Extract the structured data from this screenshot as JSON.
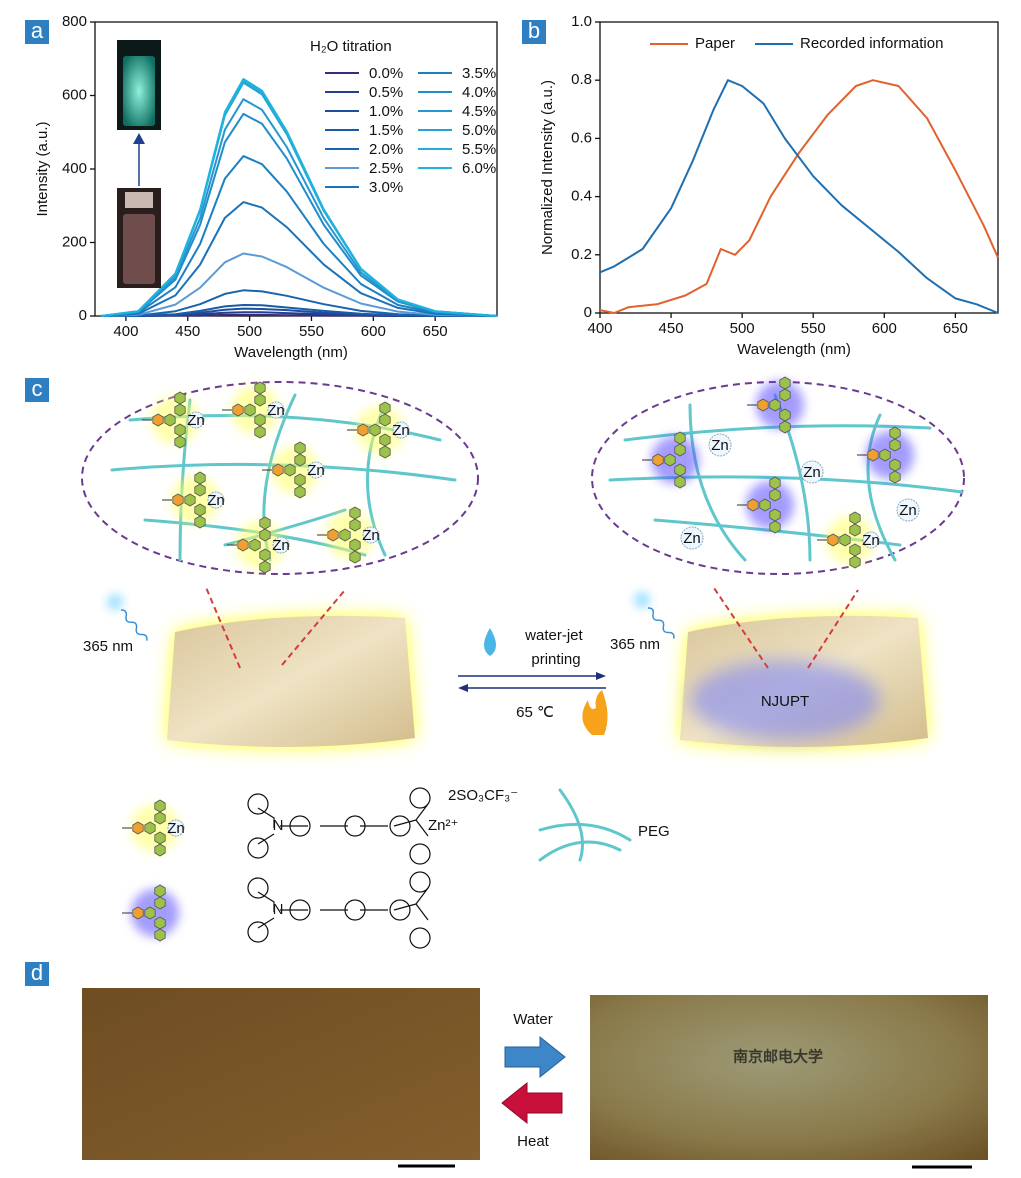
{
  "panel_labels": [
    "a",
    "b",
    "c",
    "d"
  ],
  "chart_data": [
    {
      "type": "line",
      "xlabel": "Wavelength (nm)",
      "ylabel": "Intensity (a.u.)",
      "legend_title": "H₂O titration",
      "x": [
        380,
        410,
        440,
        460,
        480,
        495,
        510,
        530,
        560,
        590,
        620,
        650,
        700
      ],
      "xlim": [
        375,
        700
      ],
      "xticks": [
        400,
        450,
        500,
        550,
        600,
        650
      ],
      "ylim": [
        0,
        800
      ],
      "yticks": [
        0,
        200,
        400,
        600,
        800
      ],
      "grid": false,
      "series": [
        {
          "name": "0.0%",
          "color": "#3a2a80",
          "values": [
            0,
            0,
            1,
            1,
            3,
            3,
            3,
            2,
            1,
            1,
            0,
            0,
            0
          ]
        },
        {
          "name": "0.5%",
          "color": "#233f8f",
          "values": [
            0,
            0,
            2,
            5,
            9,
            10,
            10,
            8,
            5,
            2,
            1,
            0,
            0
          ]
        },
        {
          "name": "1.0%",
          "color": "#1d4f9c",
          "values": [
            0,
            0,
            4,
            9,
            17,
            20,
            19,
            16,
            9,
            4,
            1,
            0,
            0
          ]
        },
        {
          "name": "1.5%",
          "color": "#1a5aa6",
          "values": [
            0,
            1,
            5,
            14,
            26,
            30,
            29,
            23,
            14,
            6,
            2,
            1,
            0
          ]
        },
        {
          "name": "2.0%",
          "color": "#1864ae",
          "values": [
            0,
            1,
            13,
            32,
            60,
            70,
            67,
            55,
            32,
            14,
            5,
            1,
            0
          ]
        },
        {
          "name": "2.5%",
          "color": "#5a9ad6",
          "values": [
            0,
            3,
            31,
            77,
            146,
            170,
            162,
            133,
            77,
            34,
            12,
            3,
            0
          ]
        },
        {
          "name": "3.0%",
          "color": "#1a72b8",
          "values": [
            0,
            6,
            56,
            140,
            267,
            310,
            295,
            242,
            140,
            62,
            22,
            6,
            0
          ]
        },
        {
          "name": "3.5%",
          "color": "#1b80c2",
          "values": [
            0,
            9,
            78,
            196,
            374,
            435,
            413,
            339,
            196,
            87,
            30,
            9,
            0
          ]
        },
        {
          "name": "4.0%",
          "color": "#1f8ccb",
          "values": [
            0,
            11,
            99,
            248,
            473,
            550,
            523,
            429,
            248,
            110,
            39,
            11,
            0
          ]
        },
        {
          "name": "4.5%",
          "color": "#2596d2",
          "values": [
            0,
            12,
            106,
            266,
            507,
            590,
            561,
            460,
            266,
            118,
            41,
            12,
            0
          ]
        },
        {
          "name": "5.0%",
          "color": "#23a2d8",
          "label_color": "#d0312d",
          "values": [
            0,
            13,
            114,
            286,
            546,
            635,
            603,
            495,
            286,
            127,
            44,
            13,
            0
          ]
        },
        {
          "name": "5.5%",
          "color": "#22acd9",
          "label_color": "#d0312d",
          "values": [
            0,
            13,
            115,
            288,
            550,
            640,
            608,
            499,
            288,
            128,
            45,
            13,
            0
          ]
        },
        {
          "name": "6.0%",
          "color": "#1eb4dc",
          "label_color": "#d0312d",
          "values": [
            0,
            13,
            116,
            290,
            555,
            645,
            613,
            503,
            290,
            129,
            45,
            13,
            0
          ]
        }
      ]
    },
    {
      "type": "line",
      "xlabel": "Wavelength (nm)",
      "ylabel": "Normalized Intensity (a.u.)",
      "xlim": [
        400,
        680
      ],
      "xticks": [
        400,
        450,
        500,
        550,
        600,
        650
      ],
      "ylim": [
        0,
        1
      ],
      "yticks": [
        0,
        0.2,
        0.4,
        0.6,
        0.8,
        {
          "value": 1,
          "label": "1.0"
        }
      ],
      "grid": false,
      "series": [
        {
          "name": "Paper",
          "color": "#e0622c",
          "x": [
            400,
            410,
            420,
            440,
            460,
            475,
            485,
            495,
            505,
            520,
            540,
            560,
            580,
            592,
            610,
            630,
            650,
            670,
            680
          ],
          "values": [
            0.01,
            0,
            0.02,
            0.03,
            0.06,
            0.1,
            0.22,
            0.2,
            0.25,
            0.4,
            0.55,
            0.68,
            0.78,
            0.8,
            0.78,
            0.67,
            0.49,
            0.3,
            0.19
          ]
        },
        {
          "name": "Recorded information",
          "color": "#1f6fb0",
          "x": [
            400,
            410,
            430,
            450,
            465,
            480,
            490,
            500,
            515,
            530,
            550,
            570,
            590,
            610,
            630,
            650,
            665,
            680
          ],
          "values": [
            0.14,
            0.16,
            0.22,
            0.36,
            0.52,
            0.7,
            0.8,
            0.78,
            0.72,
            0.6,
            0.47,
            0.37,
            0.29,
            0.21,
            0.12,
            0.05,
            0.03,
            0
          ]
        }
      ]
    }
  ],
  "diagram": {
    "zn": "Zn",
    "excitation": "365 nm",
    "forward": "water-jet printing",
    "reverse": "65 ℃",
    "printed_text": "NJUPT",
    "polymer": "PEG",
    "metal_ion": "Zn²⁺",
    "counter_ion": "2SO₃CF₃⁻",
    "atom": "N"
  },
  "photos": {
    "forward": "Water",
    "reverse": "Heat",
    "printed_text": "南京邮电大学"
  }
}
